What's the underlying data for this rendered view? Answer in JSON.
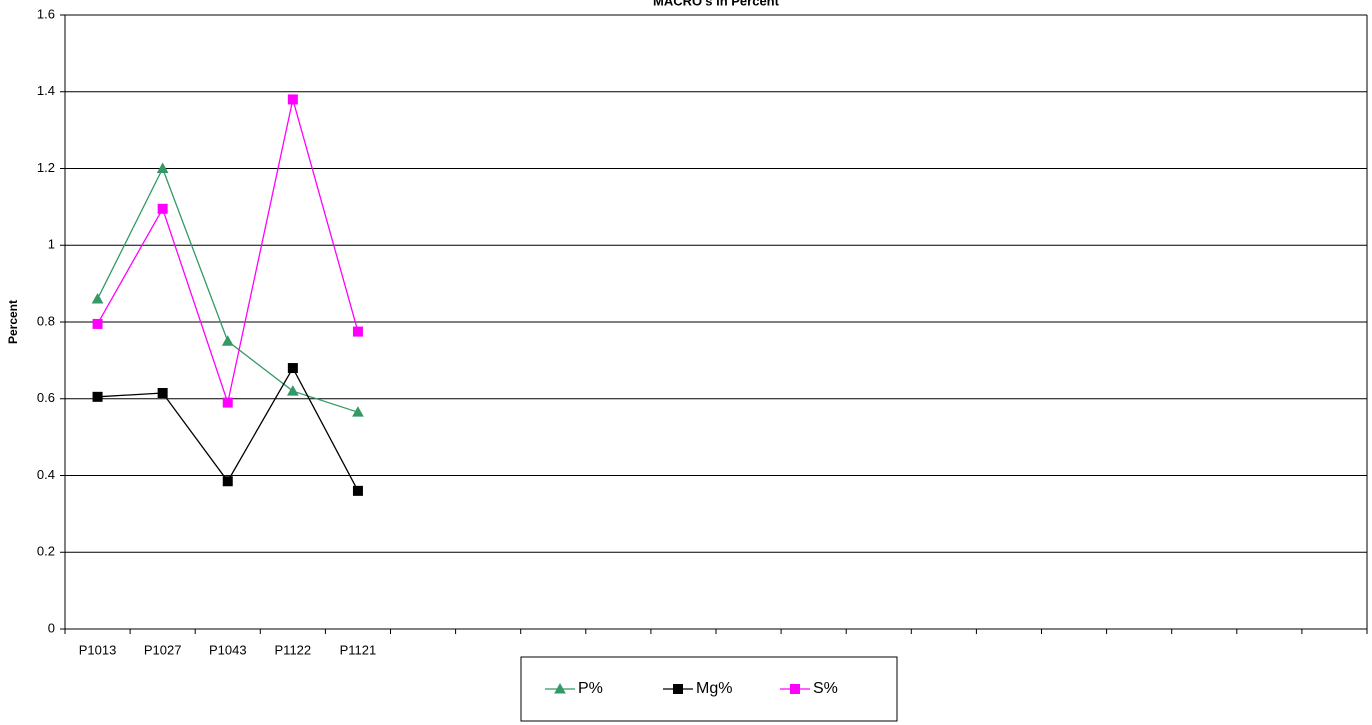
{
  "chart_data": {
    "type": "line",
    "title": "MACRO's in Percent",
    "y_label": "Percent",
    "categories": [
      "P1013",
      "P1027",
      "P1043",
      "P1122",
      "P1121",
      null,
      null,
      null,
      null,
      null,
      null,
      null,
      null,
      null,
      null,
      null,
      null,
      null,
      null,
      null
    ],
    "series": [
      {
        "name": "P%",
        "color": "#339966",
        "marker": "triangle",
        "values": [
          0.86,
          1.2,
          0.75,
          0.62,
          0.565,
          null,
          null,
          null,
          null,
          null,
          null,
          null,
          null,
          null,
          null,
          null,
          null,
          null,
          null,
          null
        ]
      },
      {
        "name": "Mg%",
        "color": "#000000",
        "marker": "square",
        "values": [
          0.605,
          0.615,
          0.385,
          0.68,
          0.36,
          null,
          null,
          null,
          null,
          null,
          null,
          null,
          null,
          null,
          null,
          null,
          null,
          null,
          null,
          null
        ]
      },
      {
        "name": "S%",
        "color": "#ff00ff",
        "marker": "square",
        "values": [
          0.795,
          1.095,
          0.59,
          1.38,
          0.775,
          null,
          null,
          null,
          null,
          null,
          null,
          null,
          null,
          null,
          null,
          null,
          null,
          null,
          null,
          null
        ]
      }
    ],
    "ylim": [
      0,
      1.6
    ],
    "yticks": [
      0,
      0.2,
      0.4,
      0.6,
      0.8,
      1,
      1.2,
      1.4,
      1.6
    ],
    "grid": true,
    "legend": "bottom"
  }
}
